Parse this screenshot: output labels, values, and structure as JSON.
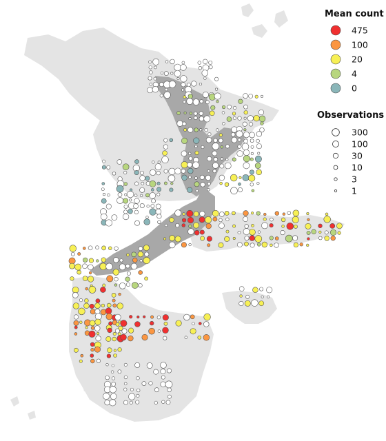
{
  "legend": {
    "mean_count": {
      "title": "Mean count",
      "items": [
        {
          "label": "475",
          "color": "#f03030"
        },
        {
          "label": "100",
          "color": "#fb9641"
        },
        {
          "label": "20",
          "color": "#f7f055"
        },
        {
          "label": "4",
          "color": "#b8d67e"
        },
        {
          "label": "0",
          "color": "#8ab6b9"
        }
      ]
    },
    "observations": {
      "title": "Observations",
      "items": [
        {
          "label": "300",
          "value": 300
        },
        {
          "label": "100",
          "value": 100
        },
        {
          "label": "30",
          "value": 30
        },
        {
          "label": "10",
          "value": 10
        },
        {
          "label": "3",
          "value": 3
        },
        {
          "label": "1",
          "value": 1
        }
      ]
    }
  },
  "colors": {
    "background": "#ffffff",
    "land_light": "#e4e4e4",
    "land_dark": "#a8a8a8",
    "no_data_fill": "#ffffff",
    "marker_stroke": "#555555"
  }
}
